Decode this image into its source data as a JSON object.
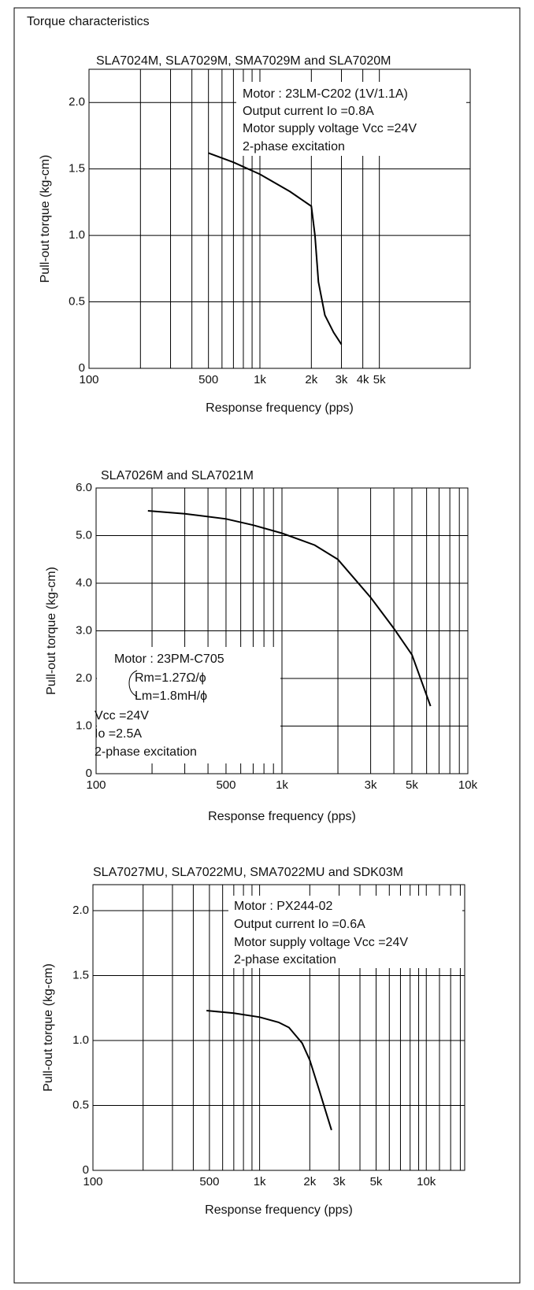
{
  "page": {
    "title": "Torque characteristics"
  },
  "chart_data": [
    {
      "type": "line",
      "title": "SLA7024M, SLA7029M, SMA7029M and SLA7020M",
      "x_label": "Response frequency (pps)",
      "y_label": "Pull-out torque (kg-cm)",
      "xscale": "log",
      "grid": true,
      "color": "#000000",
      "x": [
        500,
        700,
        1000,
        1500,
        2000,
        2100,
        2200,
        2400,
        2700,
        3000
      ],
      "values": [
        1.62,
        1.55,
        1.46,
        1.33,
        1.22,
        1.0,
        0.65,
        0.4,
        0.27,
        0.18
      ],
      "xlim": [
        100,
        17000
      ],
      "ylim": [
        0,
        2.25
      ],
      "xticks": [
        100,
        500,
        {
          "value": 1000,
          "label": "1k"
        },
        {
          "value": 2000,
          "label": "2k"
        },
        {
          "value": 3000,
          "label": "3k"
        },
        {
          "value": 4000,
          "label": "4k"
        },
        {
          "value": 5000,
          "label": "5k"
        }
      ],
      "xgrid": [
        200,
        300,
        400,
        600,
        700,
        800,
        900
      ],
      "yticks": [
        0,
        {
          "value": 0.5,
          "label": "0.5"
        },
        {
          "value": 1,
          "label": "1.0"
        },
        {
          "value": 1.5,
          "label": "1.5"
        },
        {
          "value": 2,
          "label": "2.0"
        }
      ],
      "annotation": [
        "Motor : 23LM-C202 (1V/1.1A)",
        "Output current Io =0.8A",
        "Motor supply voltage Vcc =24V",
        "2-phase excitation"
      ]
    },
    {
      "type": "line",
      "title": "SLA7026M and SLA7021M",
      "x_label": "Response frequency (pps)",
      "y_label": "Pull-out torque (kg-cm)",
      "xscale": "log",
      "grid": true,
      "color": "#000000",
      "x": [
        190,
        300,
        500,
        700,
        1000,
        1500,
        2000,
        3000,
        4000,
        5000,
        6300
      ],
      "values": [
        5.52,
        5.46,
        5.35,
        5.22,
        5.05,
        4.8,
        4.5,
        3.7,
        3.05,
        2.5,
        1.42
      ],
      "xlim": [
        100,
        10000
      ],
      "ylim": [
        0,
        6
      ],
      "xticks": [
        100,
        500,
        {
          "value": 1000,
          "label": "1k"
        },
        {
          "value": 3000,
          "label": "3k"
        },
        {
          "value": 5000,
          "label": "5k"
        },
        {
          "value": 10000,
          "label": "10k"
        }
      ],
      "xgrid": [
        200,
        300,
        400,
        600,
        700,
        800,
        900,
        2000,
        4000,
        6000,
        7000,
        8000,
        9000
      ],
      "yticks": [
        0,
        {
          "value": 1,
          "label": "1.0"
        },
        {
          "value": 2,
          "label": "2.0"
        },
        {
          "value": 3,
          "label": "3.0"
        },
        {
          "value": 4,
          "label": "4.0"
        },
        {
          "value": 5,
          "label": "5.0"
        },
        {
          "value": 6,
          "label": "6.0"
        }
      ],
      "annotation": [
        "Motor : 23PM-C705",
        "Rm=1.27Ω/ϕ",
        "Lm=1.8mH/ϕ",
        "Vcc =24V",
        "Io =2.5A",
        "2-phase excitation"
      ]
    },
    {
      "type": "line",
      "title": "SLA7027MU, SLA7022MU, SMA7022MU and SDK03M",
      "x_label": "Response frequency (pps)",
      "y_label": "Pull-out torque (kg-cm)",
      "xscale": "log",
      "grid": true,
      "color": "#000000",
      "x": [
        480,
        700,
        1000,
        1300,
        1500,
        1800,
        2000,
        2300,
        2500,
        2700
      ],
      "values": [
        1.23,
        1.21,
        1.18,
        1.14,
        1.1,
        0.98,
        0.85,
        0.6,
        0.45,
        0.31
      ],
      "xlim": [
        100,
        17000
      ],
      "ylim": [
        0,
        2.2
      ],
      "xticks": [
        100,
        500,
        {
          "value": 1000,
          "label": "1k"
        },
        {
          "value": 2000,
          "label": "2k"
        },
        {
          "value": 3000,
          "label": "3k"
        },
        {
          "value": 5000,
          "label": "5k"
        },
        {
          "value": 10000,
          "label": "10k"
        }
      ],
      "xgrid": [
        200,
        300,
        400,
        600,
        700,
        800,
        900,
        4000,
        6000,
        7000,
        8000,
        9000,
        12000,
        14000,
        16000
      ],
      "yticks": [
        0,
        {
          "value": 0.5,
          "label": "0.5"
        },
        {
          "value": 1,
          "label": "1.0"
        },
        {
          "value": 1.5,
          "label": "1.5"
        },
        {
          "value": 2,
          "label": "2.0"
        }
      ],
      "annotation": [
        "Motor : PX244-02",
        "Output current Io =0.6A",
        "Motor supply voltage Vcc =24V",
        "2-phase excitation"
      ]
    }
  ]
}
